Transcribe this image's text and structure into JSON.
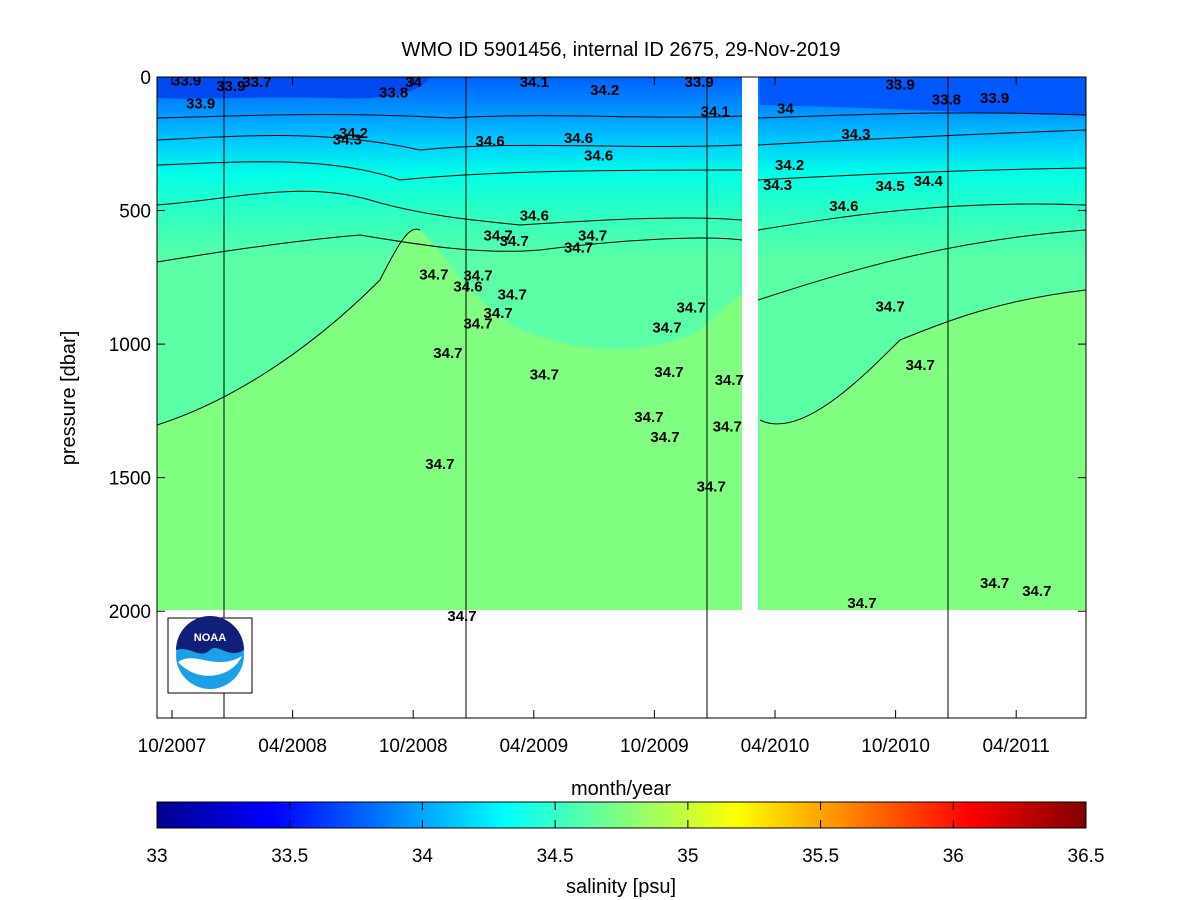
{
  "chart_data": {
    "type": "heatmap",
    "title": "WMO ID 5901456, internal ID 2675, 29-Nov-2019",
    "xlabel": "month/year",
    "ylabel": "pressure [dbar]",
    "colorbar_label": "salinity [psu]",
    "x_ticks": [
      "10/2007",
      "04/2008",
      "10/2008",
      "04/2009",
      "10/2009",
      "04/2010",
      "10/2010",
      "04/2011"
    ],
    "y_ticks": [
      "0",
      "500",
      "1000",
      "1500",
      "2000"
    ],
    "ylim": [
      0,
      2400
    ],
    "y_reversed": true,
    "colorbar_ticks": [
      "33",
      "33.5",
      "34",
      "34.5",
      "35",
      "35.5",
      "36",
      "36.5"
    ],
    "colorbar_range": [
      33,
      36.5
    ],
    "colormap": "jet",
    "year_boundaries": [
      "01/2008",
      "01/2009",
      "01/2010",
      "01/2011"
    ],
    "data_gap": "03/2010",
    "data_max_depth_dbar": 2000,
    "contour_labels": [
      {
        "text": "33.9",
        "month": 0.0,
        "p": 10
      },
      {
        "text": "33.9",
        "month": 0.7,
        "p": 95
      },
      {
        "text": "33.9",
        "month": 2.2,
        "p": 30
      },
      {
        "text": "33.7",
        "month": 3.5,
        "p": 15
      },
      {
        "text": "33.8",
        "month": 10.3,
        "p": 55
      },
      {
        "text": "34",
        "month": 11.6,
        "p": 15
      },
      {
        "text": "34.2",
        "month": 8.3,
        "p": 205
      },
      {
        "text": "34.3",
        "month": 8.0,
        "p": 230
      },
      {
        "text": "34.6",
        "month": 15.1,
        "p": 235
      },
      {
        "text": "34.1",
        "month": 17.3,
        "p": 15
      },
      {
        "text": "34.2",
        "month": 20.8,
        "p": 45
      },
      {
        "text": "34.6",
        "month": 19.5,
        "p": 225
      },
      {
        "text": "34.6",
        "month": 20.5,
        "p": 290
      },
      {
        "text": "33.9",
        "month": 25.5,
        "p": 15
      },
      {
        "text": "34.1",
        "month": 26.3,
        "p": 125
      },
      {
        "text": "34",
        "month": 30.1,
        "p": 115
      },
      {
        "text": "33.9",
        "month": 35.5,
        "p": 25
      },
      {
        "text": "33.8",
        "month": 37.8,
        "p": 80
      },
      {
        "text": "33.9",
        "month": 40.2,
        "p": 75
      },
      {
        "text": "34.3",
        "month": 33.3,
        "p": 210
      },
      {
        "text": "34.2",
        "month": 30.0,
        "p": 325
      },
      {
        "text": "34.3",
        "month": 29.4,
        "p": 400
      },
      {
        "text": "34.5",
        "month": 35.0,
        "p": 405
      },
      {
        "text": "34.4",
        "month": 36.9,
        "p": 385
      },
      {
        "text": "34.6",
        "month": 32.7,
        "p": 480
      },
      {
        "text": "34.6",
        "month": 17.3,
        "p": 515
      },
      {
        "text": "34.7",
        "month": 15.5,
        "p": 590
      },
      {
        "text": "34.7",
        "month": 16.3,
        "p": 610
      },
      {
        "text": "34.7",
        "month": 20.2,
        "p": 590
      },
      {
        "text": "34.7",
        "month": 19.5,
        "p": 635
      },
      {
        "text": "34.7",
        "month": 12.3,
        "p": 735
      },
      {
        "text": "34.7",
        "month": 14.5,
        "p": 740
      },
      {
        "text": "34.6",
        "month": 14.0,
        "p": 780
      },
      {
        "text": "34.7",
        "month": 16.2,
        "p": 810
      },
      {
        "text": "34.7",
        "month": 15.5,
        "p": 880
      },
      {
        "text": "34.7",
        "month": 14.5,
        "p": 920
      },
      {
        "text": "34.7",
        "month": 25.1,
        "p": 860
      },
      {
        "text": "34.7",
        "month": 23.9,
        "p": 935
      },
      {
        "text": "34.7",
        "month": 35.0,
        "p": 855
      },
      {
        "text": "34.7",
        "month": 13.0,
        "p": 1030
      },
      {
        "text": "34.7",
        "month": 17.8,
        "p": 1110
      },
      {
        "text": "34.7",
        "month": 24.0,
        "p": 1100
      },
      {
        "text": "34.7",
        "month": 27.0,
        "p": 1130
      },
      {
        "text": "34.7",
        "month": 36.5,
        "p": 1075
      },
      {
        "text": "34.7",
        "month": 23.0,
        "p": 1270
      },
      {
        "text": "34.7",
        "month": 23.8,
        "p": 1345
      },
      {
        "text": "34.7",
        "month": 26.9,
        "p": 1305
      },
      {
        "text": "34.7",
        "month": 12.6,
        "p": 1445
      },
      {
        "text": "34.7",
        "month": 26.1,
        "p": 1530
      },
      {
        "text": "34.7",
        "month": 13.7,
        "p": 2015
      },
      {
        "text": "34.7",
        "month": 33.6,
        "p": 1965
      },
      {
        "text": "34.7",
        "month": 40.2,
        "p": 1890
      },
      {
        "text": "34.7",
        "month": 42.3,
        "p": 1920
      }
    ]
  }
}
